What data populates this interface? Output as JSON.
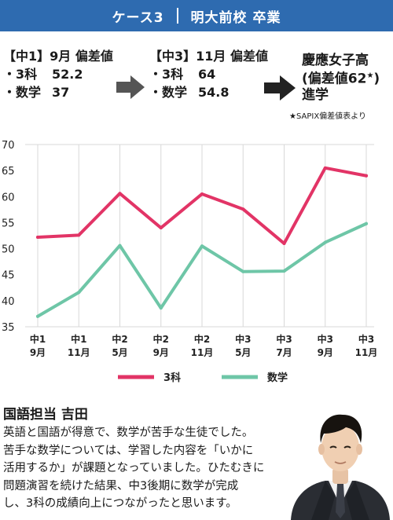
{
  "header": {
    "case_label": "ケース3",
    "school_label": "明大前校 卒業"
  },
  "stage1": {
    "title": "【中1】9月 偏差値",
    "rows": [
      {
        "label": "・3科",
        "value": "52.2"
      },
      {
        "label": "・数学",
        "value": "37"
      }
    ]
  },
  "stage2": {
    "title": "【中3】11月 偏差値",
    "rows": [
      {
        "label": "・3科",
        "value": "64"
      },
      {
        "label": "・数学",
        "value": "54.8"
      }
    ]
  },
  "result": {
    "line1": "慶應女子高",
    "line2": "(偏差値62",
    "star": "★",
    "line2_end": ")",
    "line3": "進学",
    "note": "★SAPIX偏差値表より"
  },
  "colors": {
    "header": "#2e6bb0",
    "series_3ka": "#e23466",
    "series_math": "#6ec6a7",
    "arrow_gray": "#555555",
    "arrow_black": "#222222"
  },
  "chart_data": {
    "type": "line",
    "categories": [
      [
        "中1",
        "9月"
      ],
      [
        "中1",
        "11月"
      ],
      [
        "中2",
        "5月"
      ],
      [
        "中2",
        "9月"
      ],
      [
        "中2",
        "11月"
      ],
      [
        "中3",
        "5月"
      ],
      [
        "中3",
        "7月"
      ],
      [
        "中3",
        "9月"
      ],
      [
        "中3",
        "11月"
      ]
    ],
    "series": [
      {
        "name": "3科",
        "color": "#e23466",
        "values": [
          52.2,
          52.6,
          60.6,
          54.0,
          60.5,
          57.6,
          51.0,
          65.5,
          64.0
        ]
      },
      {
        "name": "数学",
        "color": "#6ec6a7",
        "values": [
          37.0,
          41.6,
          50.6,
          38.6,
          50.5,
          45.6,
          45.7,
          51.2,
          54.8
        ]
      }
    ],
    "ylim": [
      35,
      70
    ],
    "yticks": [
      35,
      40,
      45,
      50,
      55,
      60,
      65,
      70
    ],
    "grid": "vertical",
    "legend": "bottom"
  },
  "teacher": {
    "title": "国語担当 吉田",
    "lines": [
      "英語と国語が得意で、数学が苦手な生徒でした。",
      "苦手な数学については、学習した内容を「いかに",
      "活用するか」が課題となっていました。ひたむきに",
      "問題演習を続けた結果、中3後期に数学が完成",
      "し、3科の成績向上につながったと思います。"
    ]
  },
  "photo": {
    "icon": "teacher-portrait-icon"
  }
}
